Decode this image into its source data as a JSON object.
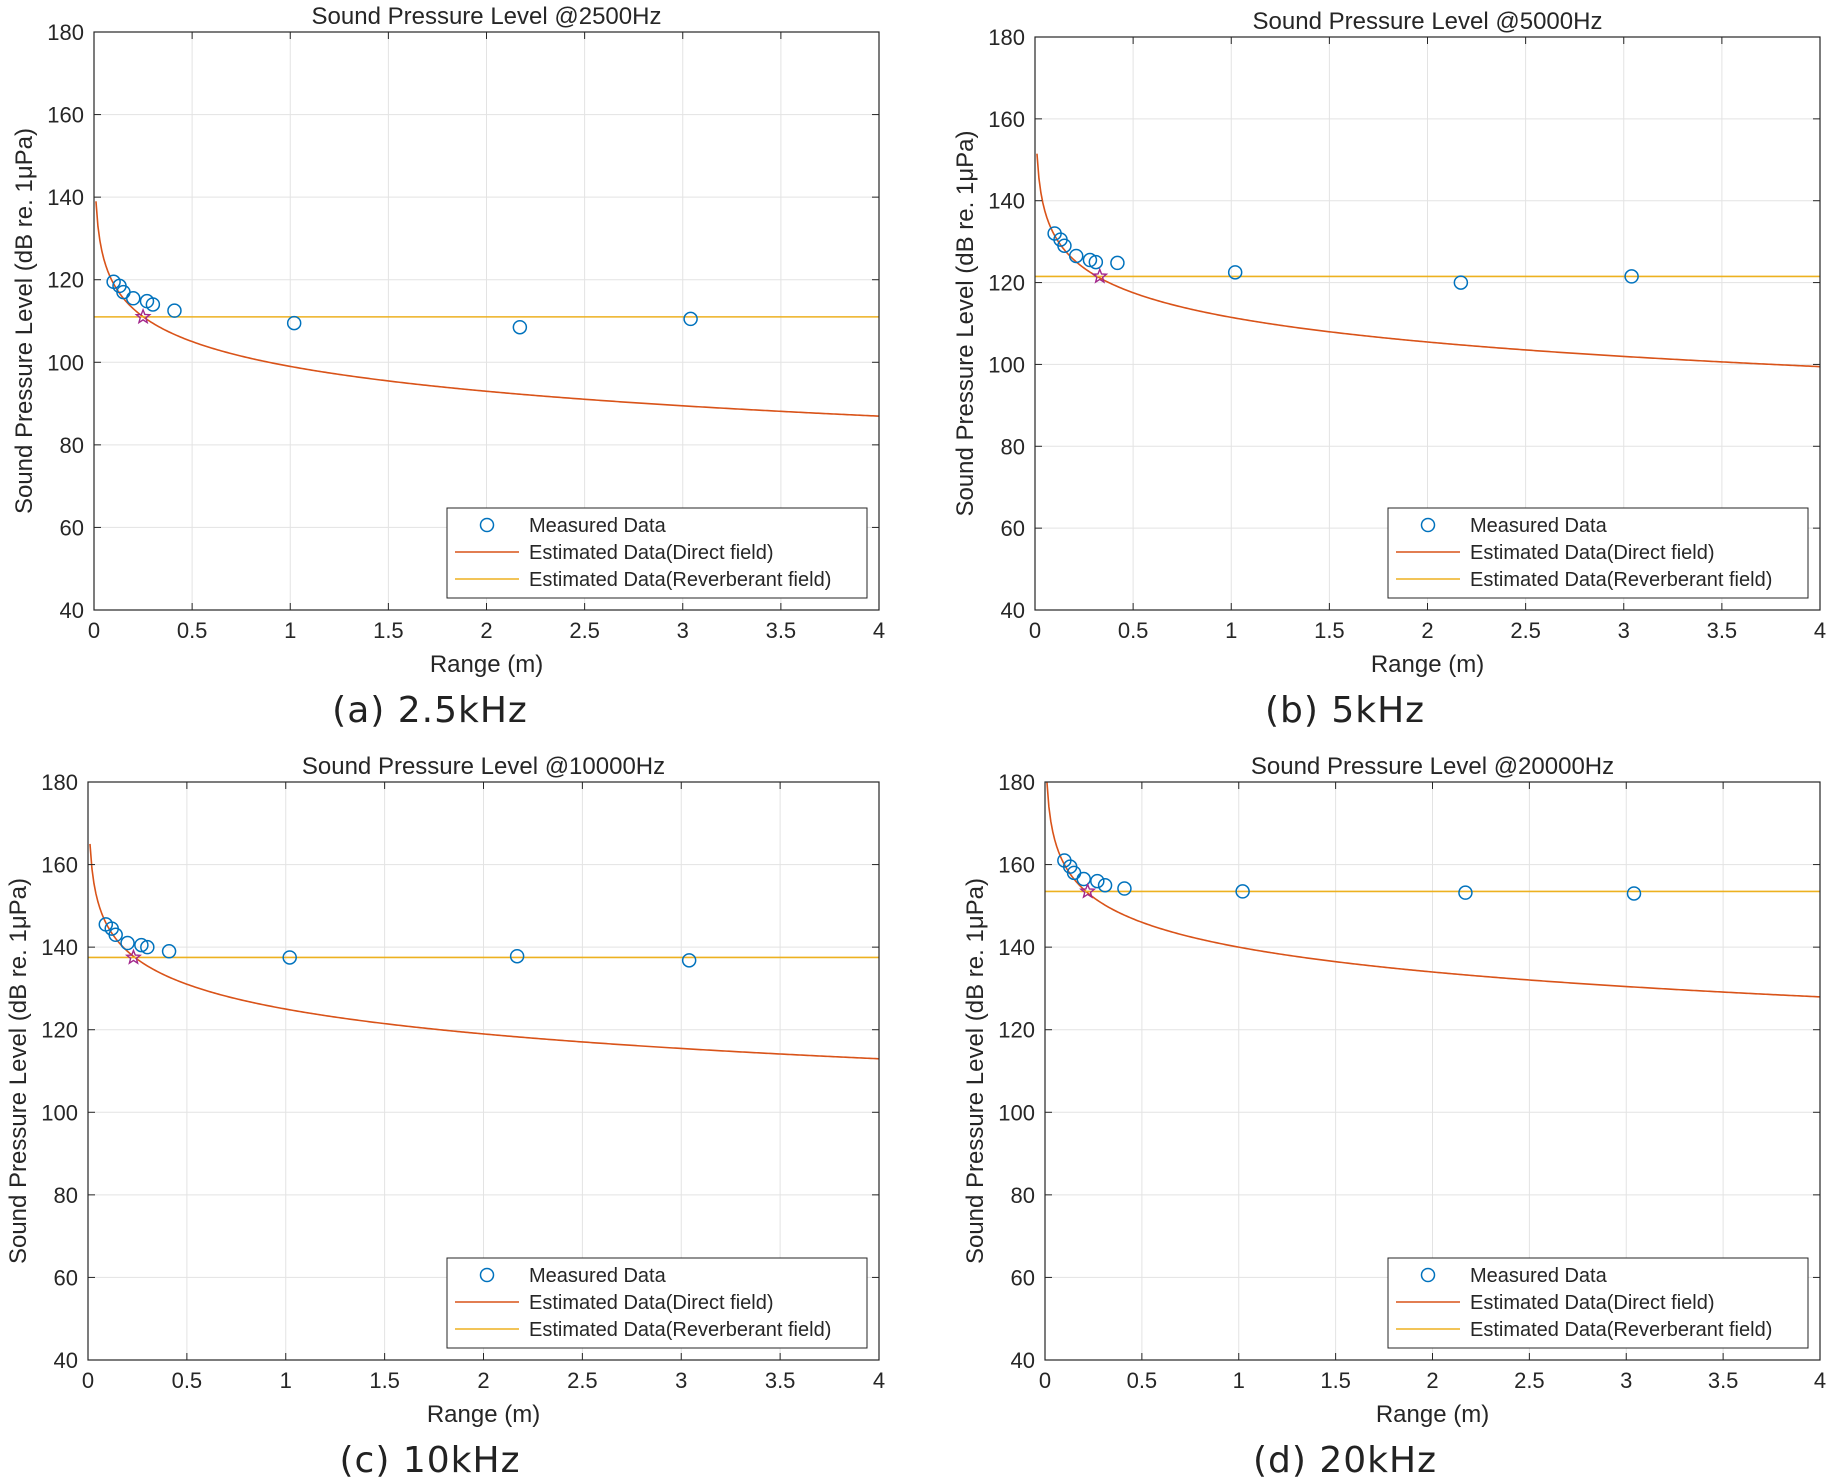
{
  "figure": {
    "panels": [
      {
        "caption": "(a)  2.5kHz",
        "chart_data": {
          "type": "scatter",
          "title": "Sound Pressure Level @2500Hz",
          "xlabel": "Range (m)",
          "ylabel": "Sound Pressure Level (dB re. 1μPa)",
          "xlim": [
            0,
            4
          ],
          "ylim": [
            40,
            180
          ],
          "x_ticks": [
            "0",
            "0.5",
            "1",
            "1.5",
            "2",
            "2.5",
            "3",
            "3.5",
            "4"
          ],
          "y_ticks": [
            "40",
            "60",
            "80",
            "100",
            "120",
            "140",
            "160",
            "180"
          ],
          "grid": true,
          "legend_position": "bottom-right",
          "series": [
            {
              "name": "Measured Data",
              "kind": "markers",
              "marker": "circle",
              "color": "#0072BD",
              "points": [
                [
                  0.1,
                  119.5
                ],
                [
                  0.13,
                  118.5
                ],
                [
                  0.15,
                  117
                ],
                [
                  0.2,
                  115.5
                ],
                [
                  0.27,
                  114.8
                ],
                [
                  0.3,
                  114
                ],
                [
                  0.41,
                  112.5
                ],
                [
                  1.02,
                  109.5
                ],
                [
                  2.17,
                  108.5
                ],
                [
                  3.04,
                  110.5
                ]
              ]
            },
            {
              "name": "Estimated Data(Direct field)",
              "kind": "line",
              "color": "#D95319",
              "model": "log",
              "reference_level_at_1m": 99,
              "points": [
                [
                  0.01,
                  139
                ],
                [
                  0.1,
                  119
                ],
                [
                  0.25,
                  111
                ],
                [
                  0.5,
                  105
                ],
                [
                  1,
                  99
                ],
                [
                  2,
                  93
                ],
                [
                  3,
                  89.5
                ],
                [
                  4,
                  87
                ]
              ]
            },
            {
              "name": "Estimated Data(Reverberant field)",
              "kind": "line",
              "color": "#EDB120",
              "points": [
                [
                  0,
                  111
                ],
                [
                  4,
                  111
                ]
              ]
            }
          ],
          "annotations": [
            {
              "type": "star",
              "color": "#A2278C",
              "x": 0.25,
              "y": 111
            }
          ]
        }
      },
      {
        "caption": "(b)  5kHz",
        "chart_data": {
          "type": "scatter",
          "title": "Sound Pressure Level @5000Hz",
          "xlabel": "Range (m)",
          "ylabel": "Sound Pressure Level (dB re. 1μPa)",
          "xlim": [
            0,
            4
          ],
          "ylim": [
            40,
            180
          ],
          "x_ticks": [
            "0",
            "0.5",
            "1",
            "1.5",
            "2",
            "2.5",
            "3",
            "3.5",
            "4"
          ],
          "y_ticks": [
            "40",
            "60",
            "80",
            "100",
            "120",
            "140",
            "160",
            "180"
          ],
          "grid": true,
          "legend_position": "bottom-right",
          "series": [
            {
              "name": "Measured Data",
              "kind": "markers",
              "marker": "circle",
              "color": "#0072BD",
              "points": [
                [
                  0.1,
                  132
                ],
                [
                  0.13,
                  130.5
                ],
                [
                  0.15,
                  129
                ],
                [
                  0.21,
                  126.5
                ],
                [
                  0.28,
                  125.5
                ],
                [
                  0.31,
                  125
                ],
                [
                  0.42,
                  124.8
                ],
                [
                  1.02,
                  122.5
                ],
                [
                  2.17,
                  120
                ],
                [
                  3.04,
                  121.5
                ]
              ]
            },
            {
              "name": "Estimated Data(Direct field)",
              "kind": "line",
              "color": "#D95319",
              "model": "log",
              "reference_level_at_1m": 111.5,
              "points": [
                [
                  0.01,
                  151.5
                ],
                [
                  0.1,
                  131.5
                ],
                [
                  0.33,
                  121.5
                ],
                [
                  0.5,
                  117.5
                ],
                [
                  1,
                  111.5
                ],
                [
                  2,
                  105.5
                ],
                [
                  3,
                  102
                ],
                [
                  4,
                  99.5
                ]
              ]
            },
            {
              "name": "Estimated Data(Reverberant field)",
              "kind": "line",
              "color": "#EDB120",
              "points": [
                [
                  0,
                  121.5
                ],
                [
                  4,
                  121.5
                ]
              ]
            }
          ],
          "annotations": [
            {
              "type": "star",
              "color": "#A2278C",
              "x": 0.33,
              "y": 121.5
            }
          ]
        }
      },
      {
        "caption": "(c)  10kHz",
        "chart_data": {
          "type": "scatter",
          "title": "Sound Pressure Level @10000Hz",
          "xlabel": "Range (m)",
          "ylabel": "Sound Pressure Level (dB re. 1μPa)",
          "xlim": [
            0,
            4
          ],
          "ylim": [
            40,
            180
          ],
          "x_ticks": [
            "0",
            "0.5",
            "1",
            "1.5",
            "2",
            "2.5",
            "3",
            "3.5",
            "4"
          ],
          "y_ticks": [
            "40",
            "60",
            "80",
            "100",
            "120",
            "140",
            "160",
            "180"
          ],
          "grid": true,
          "legend_position": "bottom-right",
          "series": [
            {
              "name": "Measured Data",
              "kind": "markers",
              "marker": "circle",
              "color": "#0072BD",
              "points": [
                [
                  0.09,
                  145.5
                ],
                [
                  0.12,
                  144.5
                ],
                [
                  0.14,
                  143
                ],
                [
                  0.2,
                  141
                ],
                [
                  0.27,
                  140.5
                ],
                [
                  0.3,
                  140
                ],
                [
                  0.41,
                  139
                ],
                [
                  1.02,
                  137.5
                ],
                [
                  2.17,
                  137.8
                ],
                [
                  3.04,
                  136.8
                ]
              ]
            },
            {
              "name": "Estimated Data(Direct field)",
              "kind": "line",
              "color": "#D95319",
              "model": "log",
              "reference_level_at_1m": 125,
              "points": [
                [
                  0.01,
                  165
                ],
                [
                  0.1,
                  145
                ],
                [
                  0.23,
                  137.5
                ],
                [
                  0.5,
                  131
                ],
                [
                  1,
                  125
                ],
                [
                  2,
                  119
                ],
                [
                  3,
                  115.5
                ],
                [
                  4,
                  113
                ]
              ]
            },
            {
              "name": "Estimated Data(Reverberant field)",
              "kind": "line",
              "color": "#EDB120",
              "points": [
                [
                  0,
                  137.5
                ],
                [
                  4,
                  137.5
                ]
              ]
            }
          ],
          "annotations": [
            {
              "type": "star",
              "color": "#A2278C",
              "x": 0.23,
              "y": 137.5
            }
          ]
        }
      },
      {
        "caption": "(d)  20kHz",
        "chart_data": {
          "type": "scatter",
          "title": "Sound Pressure Level @20000Hz",
          "xlabel": "Range (m)",
          "ylabel": "Sound Pressure Level (dB re. 1μPa)",
          "xlim": [
            0,
            4
          ],
          "ylim": [
            40,
            180
          ],
          "x_ticks": [
            "0",
            "0.5",
            "1",
            "1.5",
            "2",
            "2.5",
            "3",
            "3.5",
            "4"
          ],
          "y_ticks": [
            "40",
            "60",
            "80",
            "100",
            "120",
            "140",
            "160",
            "180"
          ],
          "grid": true,
          "legend_position": "bottom-right",
          "series": [
            {
              "name": "Measured Data",
              "kind": "markers",
              "marker": "circle",
              "color": "#0072BD",
              "points": [
                [
                  0.1,
                  161
                ],
                [
                  0.13,
                  159.5
                ],
                [
                  0.15,
                  158
                ],
                [
                  0.2,
                  156.5
                ],
                [
                  0.27,
                  156
                ],
                [
                  0.31,
                  155
                ],
                [
                  0.41,
                  154.2
                ],
                [
                  1.02,
                  153.5
                ],
                [
                  2.17,
                  153.2
                ],
                [
                  3.04,
                  153
                ]
              ]
            },
            {
              "name": "Estimated Data(Direct field)",
              "kind": "line",
              "color": "#D95319",
              "model": "log",
              "reference_level_at_1m": 140,
              "points": [
                [
                  0.01,
                  180
                ],
                [
                  0.1,
                  160
                ],
                [
                  0.22,
                  153.5
                ],
                [
                  0.5,
                  146
                ],
                [
                  1,
                  140
                ],
                [
                  2,
                  134
                ],
                [
                  3,
                  130.5
                ],
                [
                  4,
                  128
                ]
              ]
            },
            {
              "name": "Estimated Data(Reverberant field)",
              "kind": "line",
              "color": "#EDB120",
              "points": [
                [
                  0,
                  153.5
                ],
                [
                  4,
                  153.5
                ]
              ]
            }
          ],
          "annotations": [
            {
              "type": "star",
              "color": "#A2278C",
              "x": 0.22,
              "y": 153.5
            }
          ]
        }
      }
    ]
  }
}
